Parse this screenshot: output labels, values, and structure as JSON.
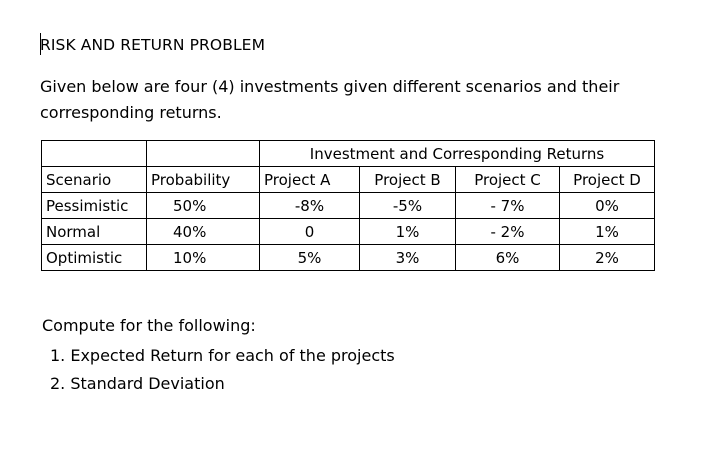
{
  "document": {
    "title": "RISK AND RETURN PROBLEM",
    "intro": "Given below are four (4) investments given different scenarios and their corresponding returns.",
    "table": {
      "group_header": "Investment and Corresponding Returns",
      "columns": [
        "Scenario",
        "Probability",
        "Project A",
        "Project B",
        "Project C",
        "Project D"
      ],
      "rows": [
        [
          "Pessimistic",
          "50%",
          "-8%",
          "-5%",
          "- 7%",
          "0%"
        ],
        [
          "Normal",
          "40%",
          "0",
          "1%",
          "- 2%",
          "1%"
        ],
        [
          "Optimistic",
          "10%",
          "5%",
          "3%",
          "6%",
          "2%"
        ]
      ]
    },
    "instruction": "Compute for the following:",
    "tasks": [
      "1. Expected Return for each of the projects",
      "2. Standard Deviation"
    ]
  }
}
